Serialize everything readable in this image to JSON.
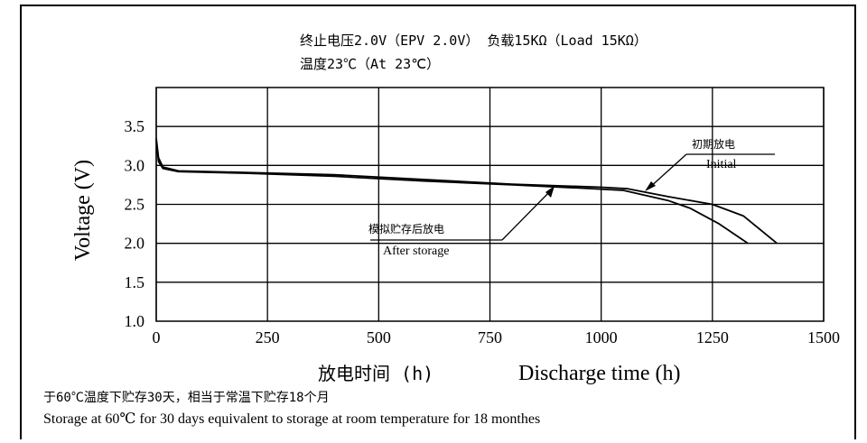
{
  "chart_data": {
    "type": "line",
    "title_line1": "终止电压2.0V（EPV 2.0V） 负载15KΩ（Load 15KΩ）",
    "title_line2": "温度23℃（At 23℃）",
    "ylabel": "Voltage (V)",
    "xlabel_cn": "放电时间 (h)",
    "xlabel_en": "Discharge time (h)",
    "xlim": [
      0,
      1500
    ],
    "ylim": [
      1.0,
      4.0
    ],
    "x_ticks": [
      "0",
      "250",
      "500",
      "750",
      "1000",
      "1250",
      "1500"
    ],
    "y_ticks": [
      "1.0",
      "1.5",
      "2.0",
      "2.5",
      "3.0",
      "3.5"
    ],
    "grid": true,
    "series": [
      {
        "name_cn": "初期放电",
        "name_en": "Initial",
        "points": [
          [
            0,
            3.35
          ],
          [
            5,
            3.1
          ],
          [
            15,
            2.98
          ],
          [
            50,
            2.93
          ],
          [
            200,
            2.91
          ],
          [
            400,
            2.88
          ],
          [
            600,
            2.82
          ],
          [
            800,
            2.76
          ],
          [
            1000,
            2.72
          ],
          [
            1060,
            2.7
          ],
          [
            1150,
            2.6
          ],
          [
            1250,
            2.5
          ],
          [
            1320,
            2.35
          ],
          [
            1395,
            2.0
          ]
        ]
      },
      {
        "name_cn": "模拟贮存后放电",
        "name_en": "After storage",
        "points": [
          [
            0,
            3.32
          ],
          [
            5,
            3.05
          ],
          [
            15,
            2.96
          ],
          [
            50,
            2.92
          ],
          [
            200,
            2.9
          ],
          [
            400,
            2.86
          ],
          [
            600,
            2.8
          ],
          [
            800,
            2.75
          ],
          [
            950,
            2.71
          ],
          [
            1050,
            2.68
          ],
          [
            1150,
            2.55
          ],
          [
            1200,
            2.45
          ],
          [
            1265,
            2.25
          ],
          [
            1330,
            2.0
          ]
        ]
      }
    ],
    "footnote_cn": "于60℃温度下贮存30天，相当于常温下贮存18个月",
    "footnote_en": "Storage at 60℃ for 30 days equivalent to storage at room temperature for 18 monthes"
  }
}
